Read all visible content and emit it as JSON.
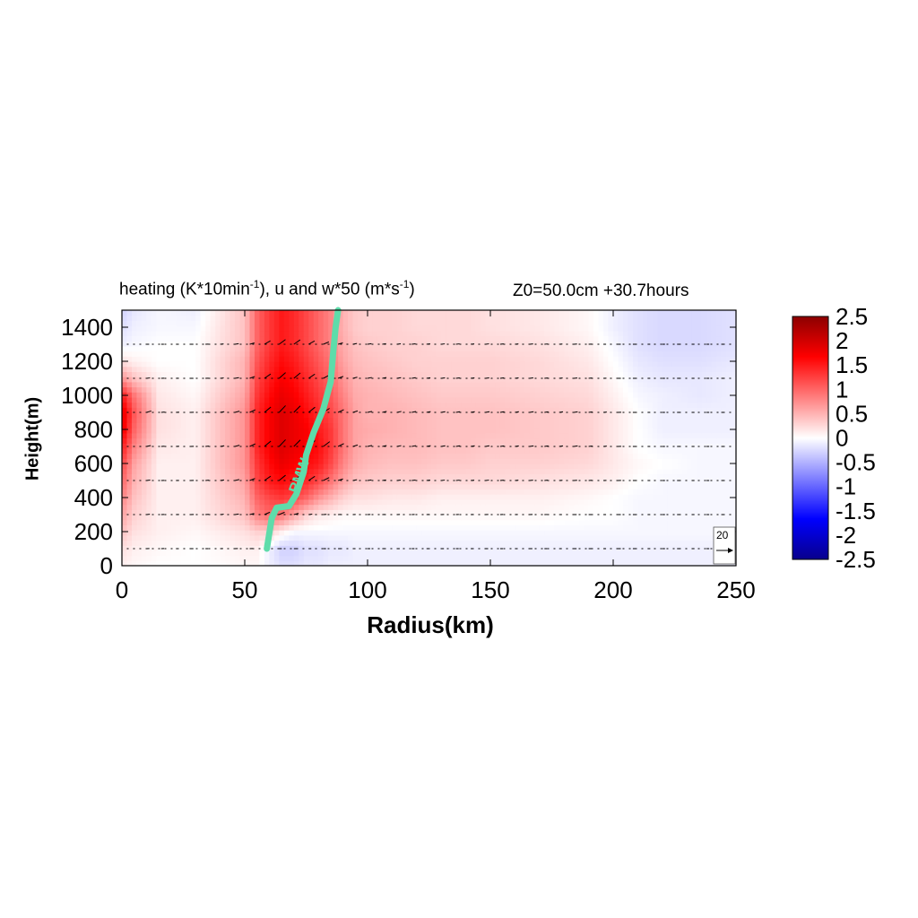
{
  "chart_data": {
    "type": "heatmap",
    "title_left": {
      "main": "heating (K*10min",
      "sup1": "-1",
      "mid": "), u and w*50 (m*s",
      "sup2": "-1",
      "end": ")"
    },
    "title_right": "Z0=50.0cm  +30.7hours",
    "xlabel": "Radius(km)",
    "ylabel": "Height(m)",
    "xlim": [
      0,
      250
    ],
    "ylim": [
      0,
      1500
    ],
    "xticks": [
      0,
      50,
      100,
      150,
      200,
      250
    ],
    "yticks": [
      0,
      200,
      400,
      600,
      800,
      1000,
      1200,
      1400
    ],
    "colorbar": {
      "range": [
        -2.5,
        2.5
      ],
      "ticks": [
        "2.5",
        "2",
        "1.5",
        "1",
        "0.5",
        "0",
        "-0.5",
        "-1",
        "-1.5",
        "-2",
        "-2.5"
      ],
      "colors": [
        "#08008c",
        "#0000ff",
        "#7f7fff",
        "#ffffff",
        "#ff7f7f",
        "#ff0000",
        "#8c0000"
      ]
    },
    "heating_field": {
      "x": [
        0,
        5,
        15,
        30,
        50,
        55,
        60,
        65,
        70,
        75,
        80,
        85,
        90,
        95,
        100,
        110,
        120,
        130,
        140,
        150,
        170,
        190,
        200,
        210,
        220,
        235,
        250
      ],
      "y": [
        0,
        100,
        200,
        300,
        400,
        500,
        600,
        700,
        800,
        900,
        1000,
        1100,
        1200,
        1300,
        1400,
        1500
      ],
      "z": [
        [
          0.1,
          0.05,
          0.0,
          0.0,
          0.05,
          0.05,
          -0.1,
          -0.2,
          -0.2,
          -0.15,
          -0.15,
          -0.1,
          -0.1,
          -0.1,
          -0.1,
          -0.1,
          -0.1,
          -0.1,
          -0.1,
          -0.1,
          -0.1,
          -0.1,
          -0.1,
          -0.1,
          -0.1,
          -0.1,
          -0.1
        ],
        [
          0.2,
          0.1,
          0.05,
          0.0,
          0.1,
          0.1,
          -0.1,
          -0.3,
          -0.3,
          -0.2,
          -0.2,
          -0.15,
          -0.15,
          -0.1,
          -0.1,
          -0.1,
          -0.1,
          -0.1,
          -0.1,
          -0.1,
          -0.1,
          -0.1,
          -0.1,
          -0.1,
          -0.1,
          -0.1,
          -0.1
        ],
        [
          0.4,
          0.2,
          0.1,
          0.05,
          0.2,
          0.3,
          0.3,
          0.1,
          -0.05,
          -0.05,
          -0.05,
          -0.05,
          -0.05,
          -0.05,
          -0.05,
          -0.05,
          -0.05,
          -0.05,
          -0.05,
          -0.05,
          -0.05,
          -0.05,
          -0.05,
          -0.05,
          -0.05,
          -0.05,
          -0.05
        ],
        [
          0.6,
          0.3,
          0.1,
          0.1,
          0.4,
          0.8,
          1.0,
          0.9,
          0.6,
          0.3,
          0.15,
          0.1,
          0.05,
          0.05,
          0.05,
          0.05,
          0.05,
          0.05,
          0.05,
          0.05,
          0.05,
          0.0,
          0.0,
          -0.05,
          -0.05,
          -0.05,
          -0.05
        ],
        [
          0.8,
          0.4,
          0.1,
          0.1,
          0.5,
          1.0,
          1.2,
          1.3,
          1.2,
          1.0,
          0.7,
          0.5,
          0.3,
          0.2,
          0.2,
          0.15,
          0.15,
          0.1,
          0.1,
          0.1,
          0.1,
          0.05,
          0.0,
          -0.05,
          -0.05,
          -0.05,
          -0.05
        ],
        [
          1.0,
          0.5,
          0.1,
          0.1,
          0.6,
          1.2,
          1.5,
          1.6,
          1.5,
          1.4,
          1.2,
          0.9,
          0.6,
          0.4,
          0.35,
          0.3,
          0.3,
          0.25,
          0.25,
          0.25,
          0.2,
          0.15,
          0.1,
          0.0,
          -0.05,
          -0.05,
          -0.05
        ],
        [
          1.2,
          0.6,
          0.1,
          0.1,
          0.7,
          1.3,
          1.6,
          1.8,
          1.7,
          1.6,
          1.5,
          1.2,
          0.8,
          0.55,
          0.45,
          0.4,
          0.4,
          0.35,
          0.35,
          0.3,
          0.3,
          0.25,
          0.15,
          0.05,
          0.0,
          -0.05,
          -0.05
        ],
        [
          1.5,
          0.8,
          0.15,
          0.1,
          0.7,
          1.4,
          1.7,
          1.9,
          1.8,
          1.7,
          1.6,
          1.3,
          0.9,
          0.6,
          0.5,
          0.45,
          0.45,
          0.4,
          0.4,
          0.35,
          0.35,
          0.3,
          0.15,
          0.0,
          -0.05,
          -0.05,
          -0.05
        ],
        [
          1.8,
          1.0,
          0.2,
          0.1,
          0.7,
          1.4,
          1.7,
          1.9,
          1.8,
          1.7,
          1.5,
          1.3,
          0.9,
          0.6,
          0.55,
          0.5,
          0.45,
          0.4,
          0.4,
          0.4,
          0.35,
          0.3,
          0.15,
          0.0,
          -0.1,
          -0.1,
          -0.1
        ],
        [
          1.9,
          1.1,
          0.2,
          0.1,
          0.7,
          1.4,
          1.7,
          1.9,
          1.8,
          1.6,
          1.4,
          1.2,
          0.9,
          0.6,
          0.5,
          0.5,
          0.45,
          0.4,
          0.4,
          0.4,
          0.35,
          0.3,
          0.15,
          0.0,
          -0.1,
          -0.1,
          -0.1
        ],
        [
          1.5,
          0.9,
          0.15,
          0.05,
          0.6,
          1.3,
          1.6,
          1.8,
          1.7,
          1.5,
          1.3,
          1.1,
          0.8,
          0.55,
          0.5,
          0.45,
          0.4,
          0.35,
          0.35,
          0.35,
          0.3,
          0.25,
          0.1,
          -0.05,
          -0.1,
          -0.15,
          -0.1
        ],
        [
          0.7,
          0.4,
          0.1,
          0.0,
          0.5,
          1.2,
          1.5,
          1.7,
          1.6,
          1.4,
          1.2,
          1.0,
          0.7,
          0.5,
          0.45,
          0.4,
          0.35,
          0.3,
          0.3,
          0.3,
          0.25,
          0.2,
          0.05,
          -0.1,
          -0.15,
          -0.15,
          -0.1
        ],
        [
          0.2,
          0.1,
          0.0,
          0.0,
          0.5,
          1.1,
          1.4,
          1.6,
          1.5,
          1.3,
          1.1,
          0.9,
          0.6,
          0.45,
          0.4,
          0.35,
          0.3,
          0.3,
          0.3,
          0.3,
          0.25,
          0.15,
          0.0,
          -0.15,
          -0.2,
          -0.2,
          -0.15
        ],
        [
          -0.1,
          -0.05,
          0.0,
          0.0,
          0.4,
          1.0,
          1.3,
          1.5,
          1.4,
          1.2,
          1.0,
          0.8,
          0.55,
          0.4,
          0.35,
          0.3,
          0.3,
          0.25,
          0.25,
          0.25,
          0.2,
          0.1,
          -0.05,
          -0.2,
          -0.25,
          -0.25,
          -0.2
        ],
        [
          -0.2,
          -0.1,
          -0.05,
          -0.05,
          0.4,
          1.0,
          1.3,
          1.5,
          1.4,
          1.2,
          1.0,
          0.8,
          0.5,
          0.35,
          0.3,
          0.3,
          0.25,
          0.25,
          0.25,
          0.2,
          0.15,
          0.05,
          -0.1,
          -0.2,
          -0.25,
          -0.25,
          -0.2
        ],
        [
          -0.3,
          -0.15,
          -0.05,
          -0.1,
          0.4,
          1.0,
          1.3,
          1.5,
          1.4,
          1.2,
          1.0,
          0.8,
          0.5,
          0.35,
          0.3,
          0.3,
          0.25,
          0.25,
          0.25,
          0.2,
          0.15,
          0.05,
          -0.1,
          -0.2,
          -0.25,
          -0.25,
          -0.2
        ]
      ]
    },
    "vector_rows_height_m": [
      100,
      300,
      500,
      700,
      900,
      1100,
      1300
    ],
    "vector_reference": {
      "label": "20",
      "length_ms": 20
    },
    "rmw": {
      "label": "RMW",
      "color": "#5edcaa",
      "points": [
        [
          59,
          100
        ],
        [
          61,
          280
        ],
        [
          63,
          340
        ],
        [
          68,
          350
        ],
        [
          71,
          420
        ],
        [
          74,
          550
        ],
        [
          75,
          650
        ],
        [
          78,
          780
        ],
        [
          82,
          920
        ],
        [
          85,
          1080
        ],
        [
          86,
          1250
        ],
        [
          87,
          1400
        ],
        [
          88,
          1500
        ]
      ]
    }
  }
}
